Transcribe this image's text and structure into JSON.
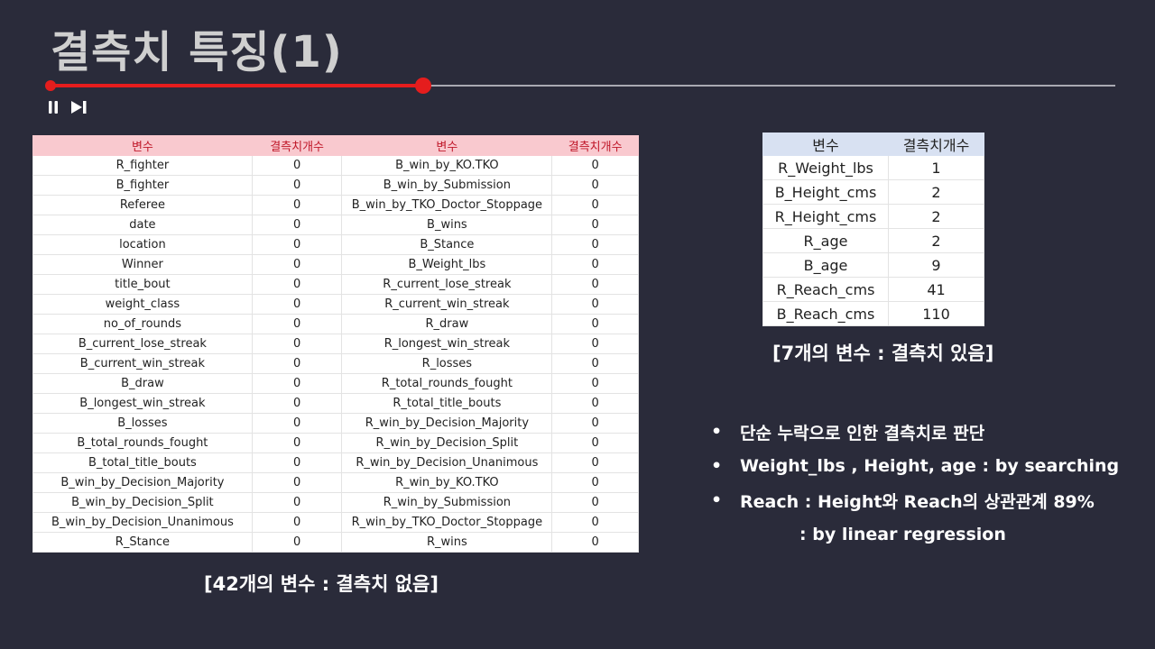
{
  "title": "결측치 특징(1)",
  "player": {
    "progress_fraction": 0.35,
    "controls": [
      "pause-icon",
      "skip-next-icon"
    ]
  },
  "colors": {
    "background": "#2a2b3a",
    "accent": "#e51d1d",
    "big_table_header": "#f9c9cf",
    "small_table_header": "#d8e1f2"
  },
  "big_table": {
    "headers": [
      "변수",
      "결측치개수",
      "변수",
      "결측치개수"
    ],
    "rows": [
      [
        "R_fighter",
        "0",
        "B_win_by_KO.TKO",
        "0"
      ],
      [
        "B_fighter",
        "0",
        "B_win_by_Submission",
        "0"
      ],
      [
        "Referee",
        "0",
        "B_win_by_TKO_Doctor_Stoppage",
        "0"
      ],
      [
        "date",
        "0",
        "B_wins",
        "0"
      ],
      [
        "location",
        "0",
        "B_Stance",
        "0"
      ],
      [
        "Winner",
        "0",
        "B_Weight_lbs",
        "0"
      ],
      [
        "title_bout",
        "0",
        "R_current_lose_streak",
        "0"
      ],
      [
        "weight_class",
        "0",
        "R_current_win_streak",
        "0"
      ],
      [
        "no_of_rounds",
        "0",
        "R_draw",
        "0"
      ],
      [
        "B_current_lose_streak",
        "0",
        "R_longest_win_streak",
        "0"
      ],
      [
        "B_current_win_streak",
        "0",
        "R_losses",
        "0"
      ],
      [
        "B_draw",
        "0",
        "R_total_rounds_fought",
        "0"
      ],
      [
        "B_longest_win_streak",
        "0",
        "R_total_title_bouts",
        "0"
      ],
      [
        "B_losses",
        "0",
        "R_win_by_Decision_Majority",
        "0"
      ],
      [
        "B_total_rounds_fought",
        "0",
        "R_win_by_Decision_Split",
        "0"
      ],
      [
        "B_total_title_bouts",
        "0",
        "R_win_by_Decision_Unanimous",
        "0"
      ],
      [
        "B_win_by_Decision_Majority",
        "0",
        "R_win_by_KO.TKO",
        "0"
      ],
      [
        "B_win_by_Decision_Split",
        "0",
        "R_win_by_Submission",
        "0"
      ],
      [
        "B_win_by_Decision_Unanimous",
        "0",
        "R_win_by_TKO_Doctor_Stoppage",
        "0"
      ],
      [
        "R_Stance",
        "0",
        "R_wins",
        "0"
      ]
    ],
    "caption": "[42개의 변수 : 결측치 없음]"
  },
  "small_table": {
    "headers": [
      "변수",
      "결측치개수"
    ],
    "rows": [
      [
        "R_Weight_lbs",
        "1"
      ],
      [
        "B_Height_cms",
        "2"
      ],
      [
        "R_Height_cms",
        "2"
      ],
      [
        "R_age",
        "2"
      ],
      [
        "B_age",
        "9"
      ],
      [
        "R_Reach_cms",
        "41"
      ],
      [
        "B_Reach_cms",
        "110"
      ]
    ],
    "caption": "[7개의 변수 : 결측치 있음]"
  },
  "bullets": [
    "단순 누락으로 인한 결측치로 판단",
    "Weight_lbs , Height, age :  by searching",
    "Reach : Height와 Reach의 상관관계 89%"
  ],
  "bullet_symbol": "•",
  "bullet_continuation": ": by linear regression"
}
